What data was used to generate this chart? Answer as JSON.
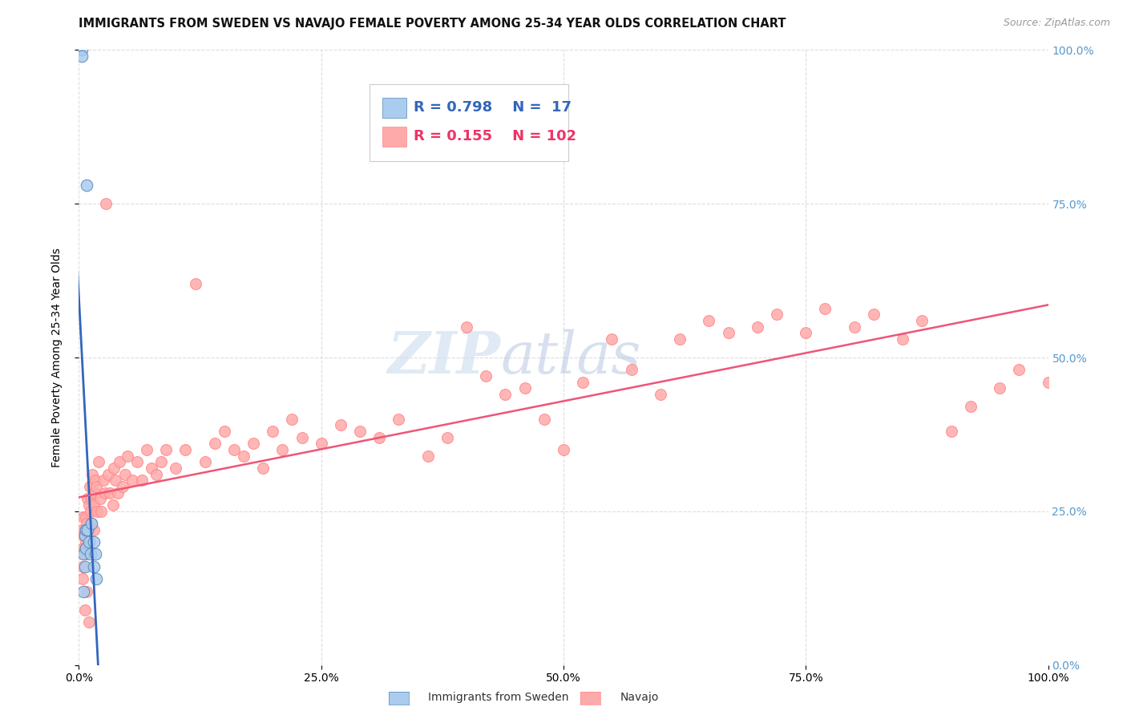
{
  "title": "IMMIGRANTS FROM SWEDEN VS NAVAJO FEMALE POVERTY AMONG 25-34 YEAR OLDS CORRELATION CHART",
  "source_text": "Source: ZipAtlas.com",
  "ylabel": "Female Poverty Among 25-34 Year Olds",
  "watermark_zip": "ZIP",
  "watermark_atlas": "atlas",
  "xlim": [
    0.0,
    1.0
  ],
  "ylim": [
    0.0,
    1.0
  ],
  "xtick_labels": [
    "0.0%",
    "25.0%",
    "50.0%",
    "75.0%",
    "100.0%"
  ],
  "ytick_labels_right": [
    "0.0%",
    "25.0%",
    "50.0%",
    "75.0%",
    "100.0%"
  ],
  "blue_R": 0.798,
  "blue_N": 17,
  "pink_R": 0.155,
  "pink_N": 102,
  "blue_scatter_color": "#AACCEE",
  "blue_edge_color": "#5588BB",
  "pink_scatter_color": "#FFAAAA",
  "pink_edge_color": "#FF8888",
  "blue_line_color": "#3366BB",
  "pink_line_color": "#EE5577",
  "legend_label_blue": "Immigrants from Sweden",
  "legend_label_pink": "Navajo",
  "blue_x": [
    0.003,
    0.003,
    0.005,
    0.005,
    0.006,
    0.006,
    0.007,
    0.007,
    0.008,
    0.009,
    0.01,
    0.012,
    0.013,
    0.015,
    0.015,
    0.017,
    0.018
  ],
  "blue_y": [
    1.0,
    0.99,
    0.18,
    0.12,
    0.21,
    0.16,
    0.22,
    0.19,
    0.78,
    0.22,
    0.2,
    0.18,
    0.23,
    0.2,
    0.16,
    0.18,
    0.14
  ],
  "pink_x": [
    0.003,
    0.004,
    0.004,
    0.005,
    0.005,
    0.005,
    0.006,
    0.006,
    0.007,
    0.007,
    0.008,
    0.008,
    0.009,
    0.009,
    0.01,
    0.01,
    0.011,
    0.012,
    0.013,
    0.013,
    0.014,
    0.015,
    0.015,
    0.016,
    0.017,
    0.018,
    0.019,
    0.02,
    0.022,
    0.023,
    0.025,
    0.027,
    0.028,
    0.03,
    0.032,
    0.035,
    0.036,
    0.038,
    0.04,
    0.042,
    0.045,
    0.048,
    0.05,
    0.055,
    0.06,
    0.065,
    0.07,
    0.075,
    0.08,
    0.085,
    0.09,
    0.1,
    0.11,
    0.12,
    0.13,
    0.14,
    0.15,
    0.16,
    0.17,
    0.18,
    0.19,
    0.2,
    0.21,
    0.22,
    0.23,
    0.25,
    0.27,
    0.29,
    0.31,
    0.33,
    0.36,
    0.38,
    0.4,
    0.42,
    0.44,
    0.46,
    0.48,
    0.5,
    0.52,
    0.55,
    0.57,
    0.6,
    0.62,
    0.65,
    0.67,
    0.7,
    0.72,
    0.75,
    0.77,
    0.8,
    0.82,
    0.85,
    0.87,
    0.9,
    0.92,
    0.95,
    0.97,
    1.0,
    0.004,
    0.006,
    0.008,
    0.01
  ],
  "pink_y": [
    0.22,
    0.19,
    0.16,
    0.24,
    0.21,
    0.18,
    0.22,
    0.19,
    0.24,
    0.2,
    0.23,
    0.18,
    0.27,
    0.21,
    0.26,
    0.22,
    0.29,
    0.25,
    0.27,
    0.23,
    0.31,
    0.26,
    0.22,
    0.28,
    0.3,
    0.29,
    0.25,
    0.33,
    0.27,
    0.25,
    0.3,
    0.28,
    0.75,
    0.31,
    0.28,
    0.26,
    0.32,
    0.3,
    0.28,
    0.33,
    0.29,
    0.31,
    0.34,
    0.3,
    0.33,
    0.3,
    0.35,
    0.32,
    0.31,
    0.33,
    0.35,
    0.32,
    0.35,
    0.62,
    0.33,
    0.36,
    0.38,
    0.35,
    0.34,
    0.36,
    0.32,
    0.38,
    0.35,
    0.4,
    0.37,
    0.36,
    0.39,
    0.38,
    0.37,
    0.4,
    0.34,
    0.37,
    0.55,
    0.47,
    0.44,
    0.45,
    0.4,
    0.35,
    0.46,
    0.53,
    0.48,
    0.44,
    0.53,
    0.56,
    0.54,
    0.55,
    0.57,
    0.54,
    0.58,
    0.55,
    0.57,
    0.53,
    0.56,
    0.38,
    0.42,
    0.45,
    0.48,
    0.46,
    0.14,
    0.09,
    0.12,
    0.07
  ],
  "title_fontsize": 10.5,
  "axis_tick_fontsize": 10,
  "right_tick_color": "#5599CC",
  "grid_color": "#DDDDDD",
  "background_color": "#FFFFFF"
}
